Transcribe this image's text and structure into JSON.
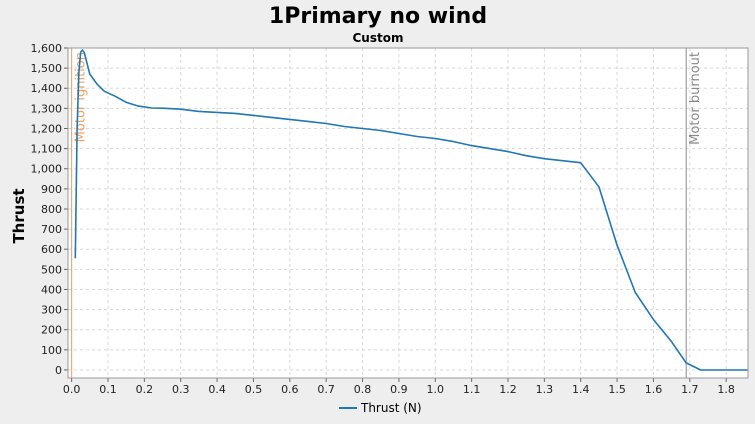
{
  "chart_data": {
    "type": "line",
    "title": "1Primary no wind",
    "subtitle": "Custom",
    "xlabel": "",
    "ylabel": "Thrust",
    "xlim": [
      -0.01,
      1.86
    ],
    "ylim": [
      -40,
      1600
    ],
    "x_ticks": [
      0.0,
      0.1,
      0.2,
      0.3,
      0.4,
      0.5,
      0.6,
      0.7,
      0.8,
      0.9,
      1.0,
      1.1,
      1.2,
      1.3,
      1.4,
      1.5,
      1.6,
      1.7,
      1.8
    ],
    "x_tick_labels": [
      "0.0",
      "0.1",
      "0.2",
      "0.3",
      "0.4",
      "0.5",
      "0.6",
      "0.7",
      "0.8",
      "0.9",
      "1.0",
      "1.1",
      "1.2",
      "1.3",
      "1.4",
      "1.5",
      "1.6",
      "1.7",
      "1.8"
    ],
    "y_ticks": [
      0,
      100,
      200,
      300,
      400,
      500,
      600,
      700,
      800,
      900,
      1000,
      1100,
      1200,
      1300,
      1400,
      1500,
      1600
    ],
    "y_tick_labels": [
      "0",
      "100",
      "200",
      "300",
      "400",
      "500",
      "600",
      "700",
      "800",
      "900",
      "1,000",
      "1,100",
      "1,200",
      "1,300",
      "1,400",
      "1,500",
      "1,600"
    ],
    "grid": true,
    "legend_position": "bottom",
    "series": [
      {
        "name": "Thrust (N)",
        "color": "#1f77b4",
        "x": [
          0.01,
          0.015,
          0.02,
          0.025,
          0.03,
          0.035,
          0.04,
          0.05,
          0.07,
          0.09,
          0.12,
          0.15,
          0.18,
          0.22,
          0.25,
          0.3,
          0.35,
          0.4,
          0.45,
          0.5,
          0.55,
          0.6,
          0.65,
          0.7,
          0.75,
          0.8,
          0.85,
          0.9,
          0.95,
          1.0,
          1.05,
          1.1,
          1.15,
          1.2,
          1.25,
          1.3,
          1.35,
          1.4,
          1.45,
          1.5,
          1.55,
          1.6,
          1.65,
          1.69,
          1.73,
          1.76,
          1.8,
          1.86
        ],
        "y": [
          555,
          1200,
          1480,
          1580,
          1590,
          1575,
          1540,
          1470,
          1420,
          1385,
          1360,
          1330,
          1313,
          1302,
          1301,
          1296,
          1285,
          1280,
          1275,
          1265,
          1255,
          1245,
          1235,
          1225,
          1210,
          1200,
          1190,
          1175,
          1160,
          1150,
          1135,
          1115,
          1100,
          1085,
          1065,
          1050,
          1040,
          1030,
          910,
          620,
          385,
          250,
          140,
          35,
          0,
          0,
          0,
          0
        ]
      }
    ],
    "markers": [
      {
        "label": "Motor ignition",
        "x": 0.0,
        "color": "#f0a060"
      },
      {
        "label": "Motor burnout",
        "x": 1.69,
        "color": "#8a8a8a"
      }
    ]
  }
}
